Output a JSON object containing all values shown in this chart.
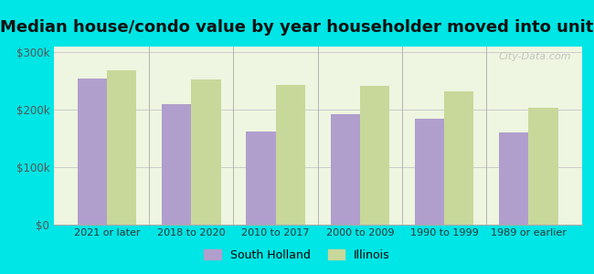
{
  "title": "Median house/condo value by year householder moved into unit",
  "categories": [
    "2021 or later",
    "2018 to 2020",
    "2010 to 2017",
    "2000 to 2009",
    "1990 to 1999",
    "1989 or earlier"
  ],
  "south_holland": [
    255000,
    210000,
    162000,
    193000,
    185000,
    160000
  ],
  "illinois": [
    268000,
    252000,
    243000,
    242000,
    232000,
    203000
  ],
  "bar_color_sh": "#b09fcc",
  "bar_color_il": "#c8d89a",
  "background_outer": "#00e5e5",
  "background_inner": "#eef5e0",
  "ylim": [
    0,
    310000
  ],
  "yticks": [
    0,
    100000,
    200000,
    300000
  ],
  "ytick_labels": [
    "$0",
    "$100k",
    "$200k",
    "$300k"
  ],
  "legend_label_sh": "South Holland",
  "legend_label_il": "Illinois",
  "title_fontsize": 13,
  "watermark": "City-Data.com"
}
